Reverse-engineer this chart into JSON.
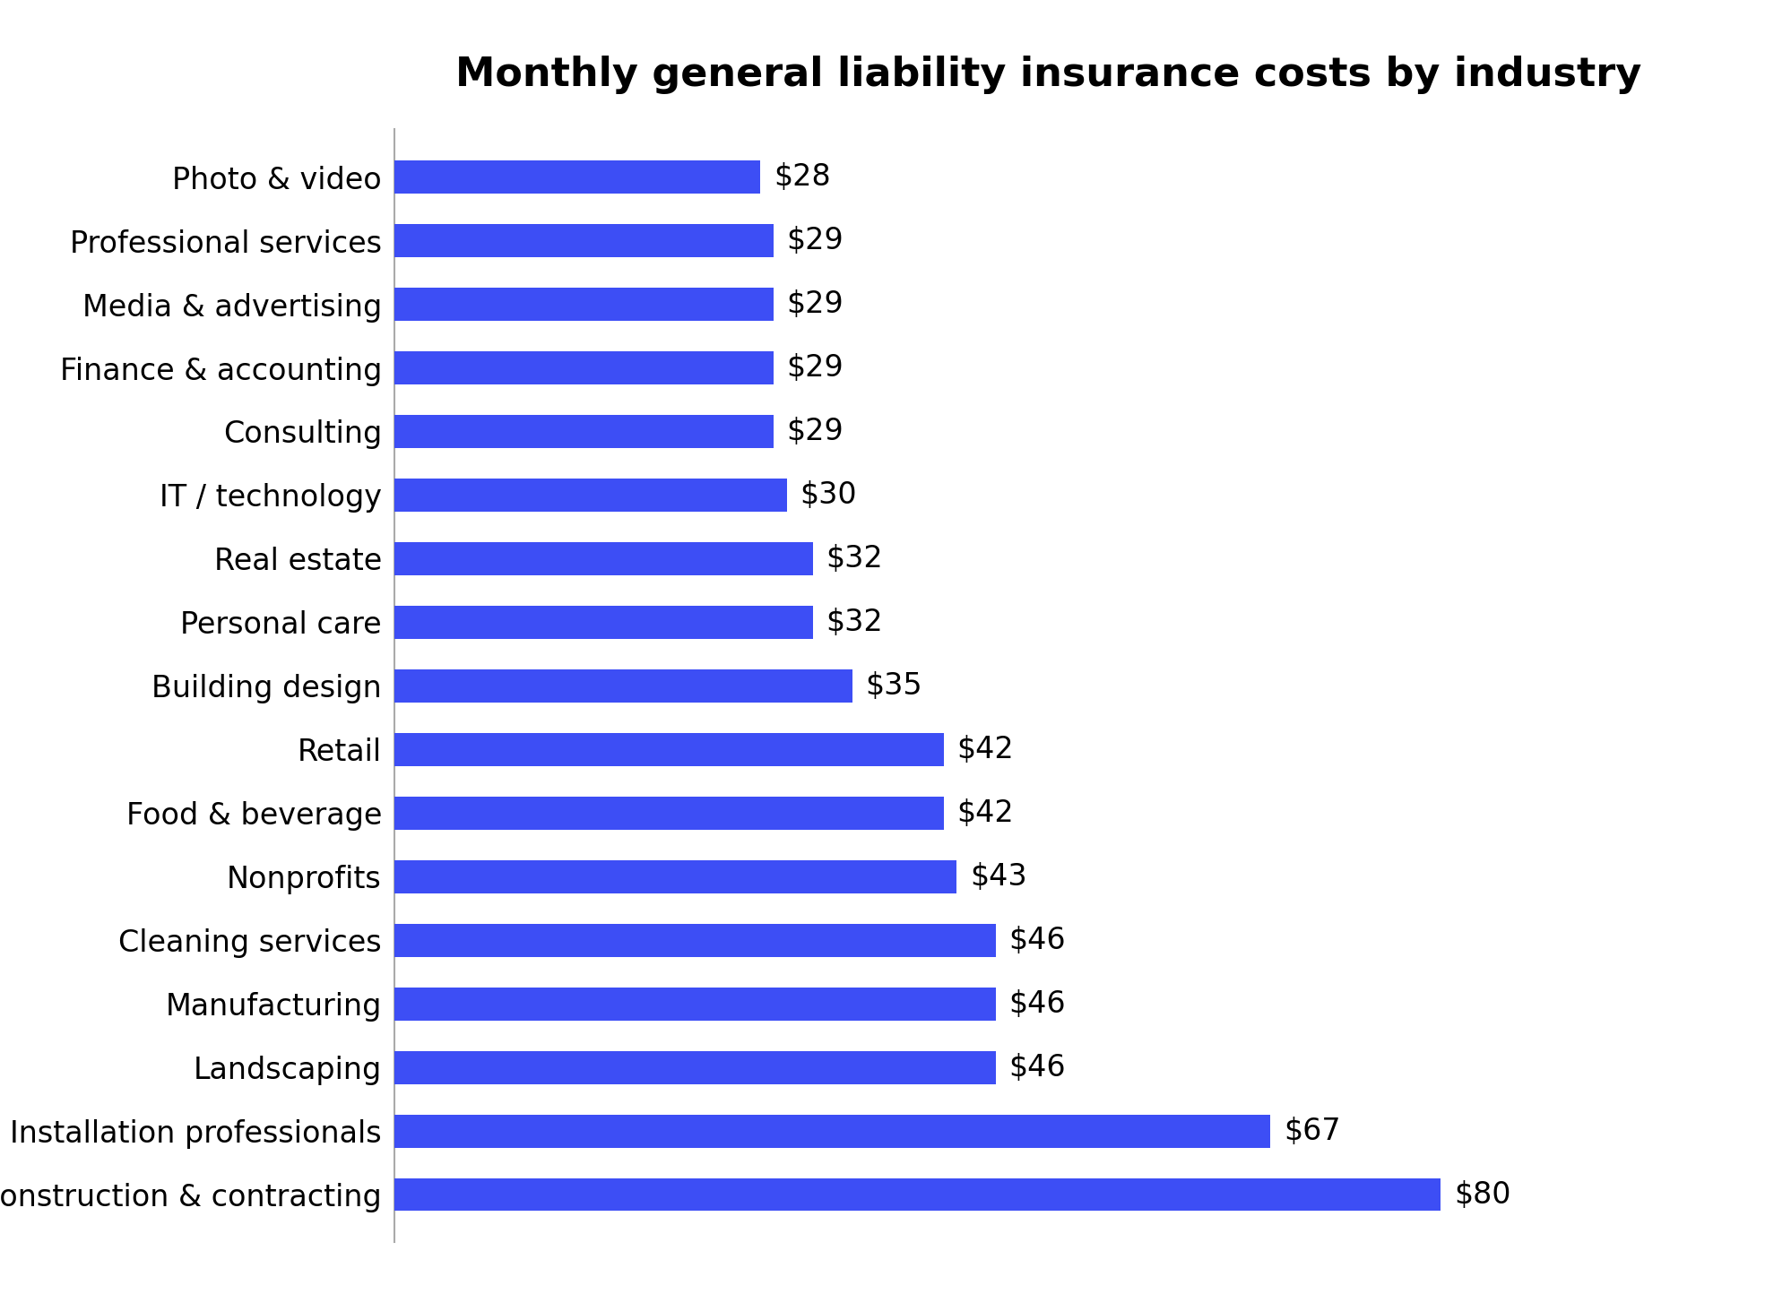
{
  "title": "Monthly general liability insurance costs by industry",
  "categories": [
    "Construction & contracting",
    "Installation professionals",
    "Landscaping",
    "Manufacturing",
    "Cleaning services",
    "Nonprofits",
    "Food & beverage",
    "Retail",
    "Building design",
    "Personal care",
    "Real estate",
    "IT / technology",
    "Consulting",
    "Finance & accounting",
    "Media & advertising",
    "Professional services",
    "Photo & video"
  ],
  "values": [
    80,
    67,
    46,
    46,
    46,
    43,
    42,
    42,
    35,
    32,
    32,
    30,
    29,
    29,
    29,
    29,
    28
  ],
  "bar_color": "#3d4ef5",
  "label_color": "#000000",
  "background_color": "#ffffff",
  "title_fontsize": 32,
  "label_fontsize": 24,
  "value_fontsize": 24,
  "bar_height": 0.52,
  "xlim": [
    0,
    100
  ]
}
